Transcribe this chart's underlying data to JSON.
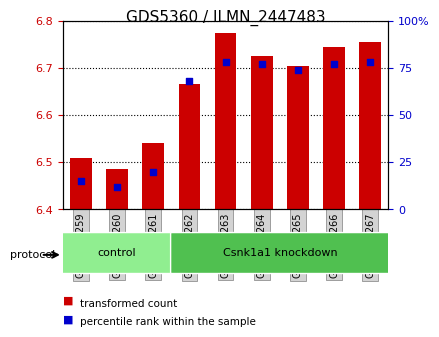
{
  "title": "GDS5360 / ILMN_2447483",
  "samples": [
    "GSM1278259",
    "GSM1278260",
    "GSM1278261",
    "GSM1278262",
    "GSM1278263",
    "GSM1278264",
    "GSM1278265",
    "GSM1278266",
    "GSM1278267"
  ],
  "transformed_count": [
    6.51,
    6.485,
    6.54,
    6.665,
    6.775,
    6.725,
    6.705,
    6.745,
    6.755
  ],
  "percentile_rank": [
    15,
    12,
    20,
    68,
    78,
    77,
    74,
    77,
    78
  ],
  "ylim": [
    6.4,
    6.8
  ],
  "y2lim": [
    0,
    100
  ],
  "yticks": [
    6.4,
    6.5,
    6.6,
    6.7,
    6.8
  ],
  "y2ticks": [
    0,
    25,
    50,
    75,
    100
  ],
  "y2ticklabels": [
    "0",
    "25",
    "50",
    "75",
    "100%"
  ],
  "bar_color": "#cc0000",
  "dot_color": "#0000cc",
  "protocol_groups": [
    {
      "label": "control",
      "start": 0,
      "end": 3,
      "color": "#90ee90"
    },
    {
      "label": "Csnk1a1 knockdown",
      "start": 3,
      "end": 9,
      "color": "#50c050"
    }
  ],
  "legend_items": [
    {
      "label": "transformed count",
      "color": "#cc0000",
      "marker": "s"
    },
    {
      "label": "percentile rank within the sample",
      "color": "#0000cc",
      "marker": "s"
    }
  ],
  "xlabel_color": "#cc0000",
  "ylabel_color": "#cc0000",
  "y2label_color": "#0000cc",
  "bar_width": 0.6,
  "dot_size": 20,
  "grid_color": "#000000",
  "grid_linestyle": "dotted",
  "background_color": "#ffffff",
  "plot_bg_color": "#ffffff",
  "tick_label_bg": "#d3d3d3",
  "protocol_label": "protocol",
  "title_fontsize": 11,
  "axis_fontsize": 8,
  "tick_fontsize": 8
}
